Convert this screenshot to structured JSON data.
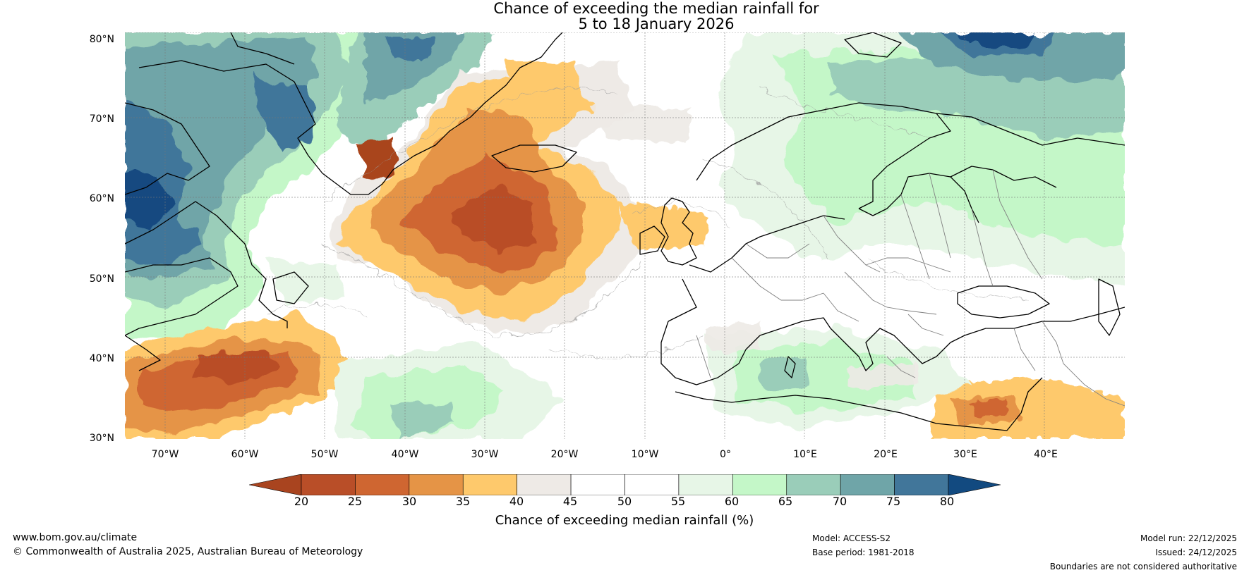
{
  "title": {
    "line1": "Chance of exceeding the median rainfall for",
    "line2": "5 to 18 January 2026"
  },
  "map": {
    "region": "North Atlantic and Europe",
    "latitude_labels": [
      "80°N",
      "70°N",
      "60°N",
      "50°N",
      "40°N",
      "30°N"
    ],
    "longitude_labels": [
      "70°W",
      "60°W",
      "50°W",
      "40°W",
      "30°W",
      "20°W",
      "10°W",
      "0°",
      "10°E",
      "20°E",
      "30°E",
      "40°E"
    ],
    "colors": {
      "p20": "#a9441f",
      "p25": "#b94e28",
      "p30": "#cf6631",
      "p35": "#e59446",
      "p40": "#fec96c",
      "p45": "#eeeae6",
      "p50": "#ffffff",
      "p55": "#ffffff",
      "p60": "#e7f6e7",
      "p65": "#c4f7c8",
      "p70": "#9acdb9",
      "p75": "#6fa5a8",
      "p80": "#41769a",
      "p85": "#124a80",
      "coast": "#000000",
      "border": "#808080"
    }
  },
  "colorbar": {
    "ticks": [
      "20",
      "25",
      "30",
      "35",
      "40",
      "45",
      "50",
      "55",
      "60",
      "65",
      "70",
      "75",
      "80"
    ],
    "label": "Chance of exceeding median rainfall (%)"
  },
  "footer": {
    "website": "www.bom.gov.au/climate",
    "copyright": "© Commonwealth of Australia 2025, Australian Bureau of Meteorology",
    "model": "Model: ACCESS-S2",
    "base_period": "Base period: 1981-2018",
    "model_run": "Model run: 22/12/2025",
    "issued": "Issued: 24/12/2025",
    "disclaimer": "Boundaries are not considered authoritative"
  }
}
